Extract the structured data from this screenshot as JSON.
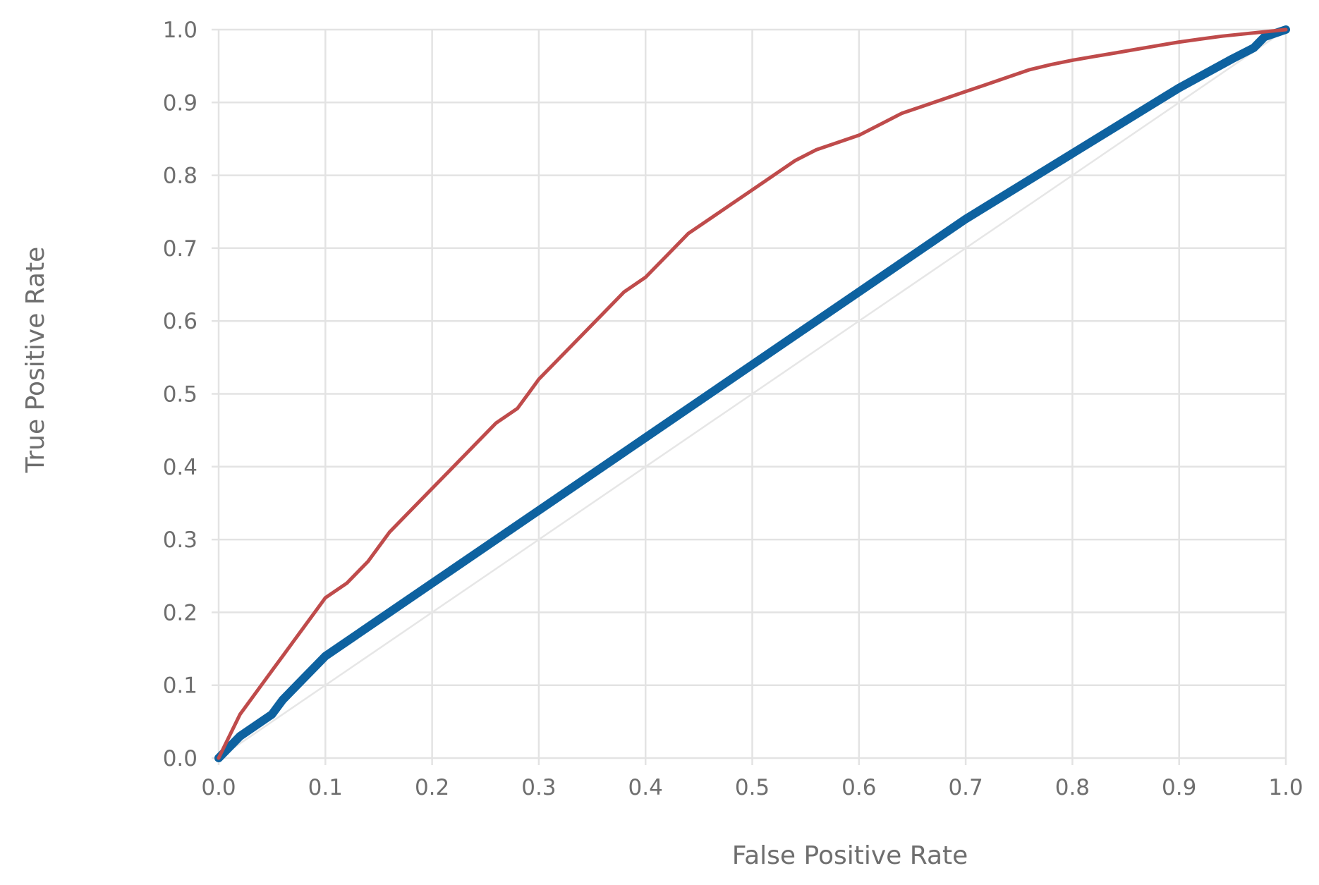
{
  "chart_data": {
    "type": "line",
    "title": "",
    "xlabel": "False Positive Rate",
    "ylabel": "True Positive Rate",
    "xlim": [
      0,
      1
    ],
    "ylim": [
      0,
      1
    ],
    "grid": true,
    "legend": "none",
    "x_ticks": [
      "0.0",
      "0.1",
      "0.2",
      "0.3",
      "0.4",
      "0.5",
      "0.6",
      "0.7",
      "0.8",
      "0.9",
      "1.0"
    ],
    "y_ticks": [
      "0.0",
      "0.1",
      "0.2",
      "0.3",
      "0.4",
      "0.5",
      "0.6",
      "0.7",
      "0.8",
      "0.9",
      "1.0"
    ],
    "series": [
      {
        "color": "#bf4b4b",
        "style": "solid",
        "x": [
          0.0,
          0.01,
          0.02,
          0.03,
          0.04,
          0.05,
          0.06,
          0.07,
          0.08,
          0.09,
          0.1,
          0.12,
          0.14,
          0.15,
          0.16,
          0.18,
          0.2,
          0.22,
          0.24,
          0.26,
          0.28,
          0.29,
          0.3,
          0.32,
          0.34,
          0.36,
          0.38,
          0.4,
          0.42,
          0.44,
          0.46,
          0.48,
          0.5,
          0.52,
          0.54,
          0.56,
          0.58,
          0.6,
          0.62,
          0.64,
          0.66,
          0.68,
          0.7,
          0.72,
          0.74,
          0.76,
          0.78,
          0.8,
          0.82,
          0.84,
          0.86,
          0.88,
          0.9,
          0.92,
          0.94,
          0.96,
          0.98,
          1.0
        ],
        "y": [
          0.0,
          0.03,
          0.06,
          0.08,
          0.1,
          0.12,
          0.14,
          0.16,
          0.18,
          0.2,
          0.22,
          0.24,
          0.27,
          0.29,
          0.31,
          0.34,
          0.37,
          0.4,
          0.43,
          0.46,
          0.48,
          0.5,
          0.52,
          0.55,
          0.58,
          0.61,
          0.64,
          0.66,
          0.69,
          0.72,
          0.74,
          0.76,
          0.78,
          0.8,
          0.82,
          0.835,
          0.845,
          0.855,
          0.87,
          0.885,
          0.895,
          0.905,
          0.915,
          0.925,
          0.935,
          0.945,
          0.952,
          0.958,
          0.963,
          0.968,
          0.973,
          0.978,
          0.983,
          0.987,
          0.991,
          0.994,
          0.997,
          1.0
        ]
      },
      {
        "color": "#0e62a0",
        "style": "solid",
        "x": [
          0.0,
          0.02,
          0.05,
          0.06,
          0.08,
          0.1,
          0.2,
          0.3,
          0.4,
          0.5,
          0.6,
          0.7,
          0.8,
          0.85,
          0.9,
          0.95,
          0.97,
          0.98,
          1.0
        ],
        "y": [
          0.0,
          0.03,
          0.06,
          0.08,
          0.11,
          0.14,
          0.24,
          0.34,
          0.44,
          0.54,
          0.64,
          0.74,
          0.83,
          0.875,
          0.92,
          0.96,
          0.975,
          0.99,
          1.0
        ]
      },
      {
        "color": "#e6e6e6",
        "style": "solid",
        "x": [
          0.0,
          1.0
        ],
        "y": [
          0.0,
          1.0
        ]
      }
    ]
  }
}
